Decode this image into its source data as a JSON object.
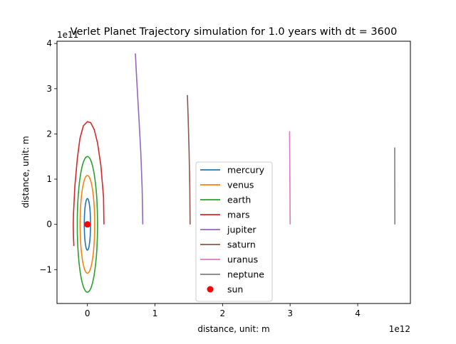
{
  "chart_data": {
    "type": "line",
    "title": "Verlet Planet Trajectory simulation for 1.0 years with dt = 3600",
    "xlabel": "distance, unit: m",
    "ylabel": "distance, unit: m",
    "x_offset_text": "1e12",
    "y_offset_text": "1e11",
    "xlim": [
      -0.45,
      4.78
    ],
    "ylim": [
      -1.75,
      4.05
    ],
    "xticks": [
      0,
      1,
      2,
      3,
      4
    ],
    "yticks": [
      -1,
      0,
      1,
      2,
      3,
      4
    ],
    "xtick_labels": [
      "0",
      "1",
      "2",
      "3",
      "4"
    ],
    "ytick_labels": [
      "−1",
      "0",
      "1",
      "2",
      "3",
      "4"
    ],
    "legend_position": "lower-center",
    "grid": false,
    "series": [
      {
        "name": "mercury",
        "color": "#1f77b4",
        "kind": "ellipse",
        "cx": 0.0,
        "cy": 0.0,
        "rx": 0.046,
        "ry": 0.57
      },
      {
        "name": "venus",
        "color": "#ff7f0e",
        "kind": "ellipse",
        "cx": 0.0,
        "cy": 0.0,
        "rx": 0.108,
        "ry": 1.08
      },
      {
        "name": "earth",
        "color": "#2ca02c",
        "kind": "ellipse",
        "cx": 0.0,
        "cy": 0.0,
        "rx": 0.15,
        "ry": 1.5
      },
      {
        "name": "mars",
        "color": "#d62728",
        "kind": "points",
        "x": [
          0.245,
          0.239,
          0.2,
          0.15,
          0.1,
          0.048,
          0.0,
          -0.06,
          -0.11,
          -0.15,
          -0.185,
          -0.205,
          -0.21,
          -0.205,
          -0.2
        ],
        "y": [
          0.0,
          0.6,
          1.3,
          1.8,
          2.1,
          2.25,
          2.27,
          2.18,
          1.9,
          1.45,
          0.85,
          0.25,
          0.0,
          -0.3,
          -0.48
        ]
      },
      {
        "name": "jupiter",
        "color": "#9467bd",
        "kind": "points",
        "x": [
          0.82,
          0.81,
          0.79,
          0.76,
          0.73,
          0.71
        ],
        "y": [
          0.0,
          0.8,
          1.6,
          2.4,
          3.2,
          3.78
        ]
      },
      {
        "name": "saturn",
        "color": "#8c564b",
        "kind": "points",
        "x": [
          1.52,
          1.515,
          1.505,
          1.49,
          1.48
        ],
        "y": [
          0.0,
          0.8,
          1.6,
          2.4,
          2.86
        ]
      },
      {
        "name": "uranus",
        "color": "#e377c2",
        "kind": "points",
        "x": [
          3.0,
          2.998,
          2.995,
          2.992
        ],
        "y": [
          0.0,
          0.7,
          1.4,
          2.06
        ]
      },
      {
        "name": "neptune",
        "color": "#7f7f7f",
        "kind": "points",
        "x": [
          4.55,
          4.549,
          4.548
        ],
        "y": [
          0.0,
          0.85,
          1.7
        ]
      }
    ],
    "markers": [
      {
        "name": "sun",
        "color": "#ff0000",
        "x": 0.0,
        "y": 0.0
      }
    ]
  }
}
